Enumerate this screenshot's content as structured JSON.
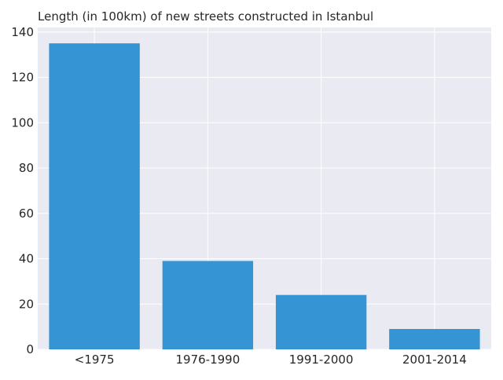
{
  "chart_data": {
    "type": "bar",
    "title": "Length (in 100km) of new streets constructed in Istanbul",
    "xlabel": "",
    "ylabel": "",
    "categories": [
      "<1975",
      "1976-1990",
      "1991-2000",
      "2001-2014"
    ],
    "values": [
      135,
      39,
      24,
      9
    ],
    "ylim": [
      0,
      142
    ],
    "yticks": [
      0,
      20,
      40,
      60,
      80,
      100,
      120,
      140
    ],
    "grid": true,
    "colors": {
      "bar": "#3594d3",
      "plot_background": "#eaeaf2",
      "grid": "#ffffff",
      "text": "#262626"
    }
  }
}
